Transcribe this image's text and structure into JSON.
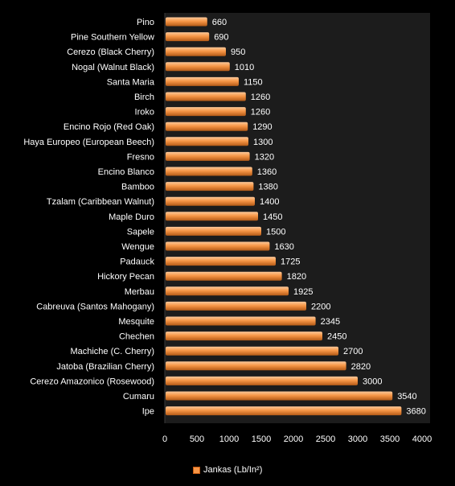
{
  "colors": {
    "background": "#000000",
    "plot_background": "#1c1c1c",
    "bar_fill": "#f79646",
    "bar_highlight": "#fbc89a",
    "bar_shadow": "#b45b17",
    "text": "#ffffff"
  },
  "chart_data": {
    "type": "bar",
    "orientation": "horizontal",
    "title": "",
    "xlabel": "",
    "ylabel": "",
    "xlim": [
      0,
      4000
    ],
    "xticks": [
      "0",
      "500",
      "1000",
      "1500",
      "2000",
      "2500",
      "3000",
      "3500",
      "4000"
    ],
    "grid": false,
    "legend_position": "bottom",
    "categories": [
      "Pino",
      "Pine Southern Yellow",
      "Cerezo (Black Cherry)",
      "Nogal (Walnut Black)",
      "Santa Maria",
      "Birch",
      "Iroko",
      "Encino Rojo (Red Oak)",
      "Haya Europeo (European Beech)",
      "Fresno",
      "Encino Blanco",
      "Bamboo",
      "Tzalam (Caribbean Walnut)",
      "Maple Duro",
      "Sapele",
      "Wengue",
      "Padauck",
      "Hickory Pecan",
      "Merbau",
      "Cabreuva (Santos Mahogany)",
      "Mesquite",
      "Chechen",
      "Machiche (C. Cherry)",
      "Jatoba (Brazilian Cherry)",
      "Cerezo Amazonico (Rosewood)",
      "Cumaru",
      "Ipe"
    ],
    "series": [
      {
        "name": "Jankas (Lb/In²)",
        "values": [
          660,
          690,
          950,
          1010,
          1150,
          1260,
          1260,
          1290,
          1300,
          1320,
          1360,
          1380,
          1400,
          1450,
          1500,
          1630,
          1725,
          1820,
          1925,
          2200,
          2345,
          2450,
          2700,
          2820,
          3000,
          3540,
          3680
        ]
      }
    ]
  }
}
